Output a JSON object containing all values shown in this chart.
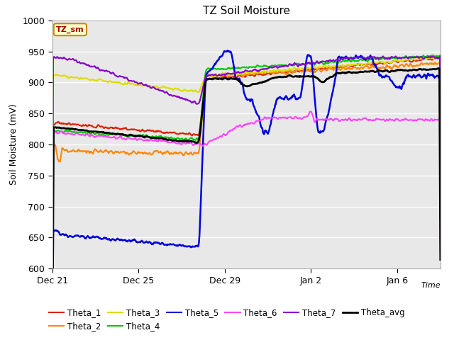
{
  "title": "TZ Soil Moisture",
  "ylabel": "Soil Moisture (mV)",
  "xlabel": "Time",
  "ylim": [
    600,
    1000
  ],
  "background_color": "#e8e8e8",
  "grid_color": "#ffffff",
  "annotation_label": "TZ_sm",
  "annotation_box_color": "#ffffcc",
  "annotation_box_edge": "#cc8800",
  "annotation_text_color": "#aa0000",
  "series": {
    "Theta_1": {
      "color": "#dd2200",
      "lw": 1.5
    },
    "Theta_2": {
      "color": "#ff8800",
      "lw": 1.5
    },
    "Theta_3": {
      "color": "#dddd00",
      "lw": 1.5
    },
    "Theta_4": {
      "color": "#00cc00",
      "lw": 1.5
    },
    "Theta_5": {
      "color": "#0000dd",
      "lw": 1.8
    },
    "Theta_6": {
      "color": "#ff44ff",
      "lw": 1.5
    },
    "Theta_7": {
      "color": "#8800cc",
      "lw": 1.5
    },
    "Theta_avg": {
      "color": "#000000",
      "lw": 2.0
    }
  },
  "xtick_labels": [
    "Dec 21",
    "Dec 25",
    "Dec 29",
    "Jan 2",
    "Jan 6"
  ],
  "xtick_positions": [
    0,
    4,
    8,
    12,
    16
  ],
  "ytick_positions": [
    600,
    650,
    700,
    750,
    800,
    850,
    900,
    950,
    1000
  ]
}
